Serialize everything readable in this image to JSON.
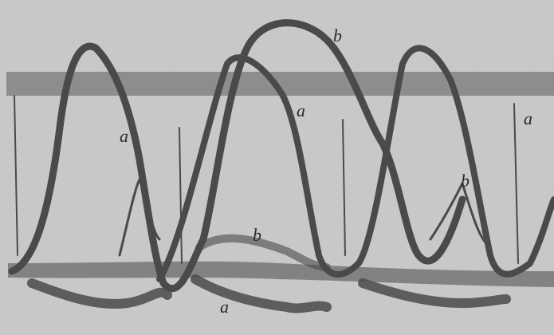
{
  "labels": [
    {
      "text": "a"
    },
    {
      "text": "b"
    },
    {
      "text": "a"
    },
    {
      "text": "a"
    },
    {
      "text": "b"
    },
    {
      "text": "b"
    },
    {
      "text": "a"
    }
  ]
}
